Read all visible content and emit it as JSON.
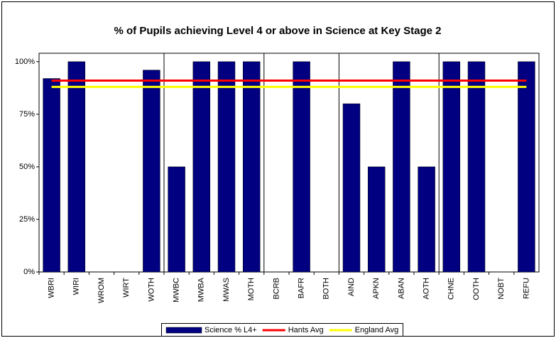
{
  "chart_data": {
    "type": "bar",
    "title": "% of Pupils achieving Level 4 or above in Science at Key Stage 2",
    "categories": [
      "WBRI",
      "WIRI",
      "WROM",
      "WIRT",
      "WOTH",
      "MWBC",
      "MWBA",
      "MWAS",
      "MOTH",
      "BCRB",
      "BAFR",
      "BOTH",
      "AIND",
      "APKN",
      "ABAN",
      "AOTH",
      "CHNE",
      "OOTH",
      "NOBT",
      "REFU"
    ],
    "series": [
      {
        "name": "Science % L4+",
        "color": "#000080",
        "values": [
          92,
          100,
          null,
          null,
          96,
          50,
          100,
          100,
          100,
          null,
          100,
          null,
          80,
          50,
          100,
          50,
          100,
          100,
          null,
          100
        ]
      }
    ],
    "reference_lines": [
      {
        "name": "Hants Avg",
        "color": "#ff0000",
        "value": 91
      },
      {
        "name": "England Avg",
        "color": "#ffff00",
        "value": 88
      }
    ],
    "group_separators": [
      5,
      9,
      12,
      16
    ],
    "ylim": [
      0,
      104
    ],
    "yticks": [
      {
        "value": 0,
        "label": "0%"
      },
      {
        "value": 25,
        "label": "25%"
      },
      {
        "value": 50,
        "label": "50%"
      },
      {
        "value": 75,
        "label": "75%"
      },
      {
        "value": 100,
        "label": "100%"
      }
    ],
    "legend": "bottom"
  }
}
